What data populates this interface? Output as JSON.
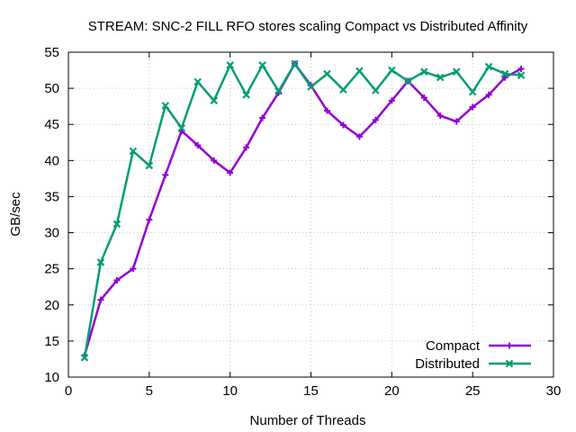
{
  "chart_data": {
    "type": "line",
    "title": "STREAM: SNC-2 FILL RFO stores scaling Compact vs Distributed Affinity",
    "xlabel": "Number of Threads",
    "ylabel": "GB/sec",
    "xlim": [
      0,
      30
    ],
    "ylim": [
      10,
      55
    ],
    "xticks": [
      0,
      5,
      10,
      15,
      20,
      25,
      30
    ],
    "yticks": [
      10,
      15,
      20,
      25,
      30,
      35,
      40,
      45,
      50,
      55
    ],
    "grid": true,
    "legend_position": "bottom-right",
    "x": [
      1,
      2,
      3,
      4,
      5,
      6,
      7,
      8,
      9,
      10,
      11,
      12,
      13,
      14,
      15,
      16,
      17,
      18,
      19,
      20,
      21,
      22,
      23,
      24,
      25,
      26,
      27,
      28
    ],
    "series": [
      {
        "name": "Compact",
        "color": "#9400d3",
        "marker": "plus",
        "values": [
          13.0,
          20.7,
          23.4,
          25.0,
          31.8,
          38.0,
          44.1,
          42.1,
          40.0,
          38.3,
          41.8,
          45.9,
          49.4,
          53.4,
          50.4,
          46.9,
          44.9,
          43.3,
          45.6,
          48.3,
          51.0,
          48.7,
          46.2,
          45.4,
          47.4,
          49.1,
          51.5,
          52.7
        ]
      },
      {
        "name": "Distributed",
        "color": "#009e73",
        "marker": "x",
        "values": [
          12.7,
          25.9,
          31.2,
          41.3,
          39.3,
          47.6,
          44.5,
          50.9,
          48.3,
          53.2,
          49.1,
          53.2,
          49.6,
          53.4,
          50.2,
          52.0,
          49.8,
          52.4,
          49.7,
          52.5,
          51.0,
          52.3,
          51.5,
          52.3,
          49.5,
          53.0,
          52.0,
          51.8
        ]
      }
    ]
  }
}
